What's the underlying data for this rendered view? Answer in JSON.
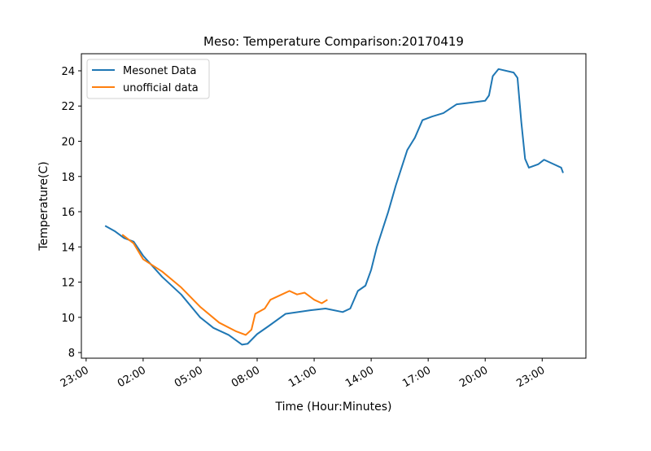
{
  "chart_data": {
    "type": "line",
    "title": "Meso: Temperature Comparison:20170419",
    "xlabel": "Time (Hour:Minutes)",
    "ylabel": "Temperature(C)",
    "xlim": [
      -1.25,
      25.3
    ],
    "ylim": [
      7.68,
      24.97
    ],
    "xticks": [
      {
        "value": -1,
        "label": "23:00"
      },
      {
        "value": 2,
        "label": "02:00"
      },
      {
        "value": 5,
        "label": "05:00"
      },
      {
        "value": 8,
        "label": "08:00"
      },
      {
        "value": 11,
        "label": "11:00"
      },
      {
        "value": 14,
        "label": "14:00"
      },
      {
        "value": 17,
        "label": "17:00"
      },
      {
        "value": 20,
        "label": "20:00"
      },
      {
        "value": 23,
        "label": "23:00"
      }
    ],
    "yticks": [
      8,
      10,
      12,
      14,
      16,
      18,
      20,
      22,
      24
    ],
    "legend": "upper left",
    "series": [
      {
        "name": "Mesonet Data",
        "color": "#1f77b4",
        "x": [
          0.0,
          0.5,
          1.0,
          1.5,
          2.0,
          3.0,
          4.0,
          5.0,
          5.7,
          6.5,
          7.2,
          7.5,
          8.0,
          8.6,
          9.5,
          10.8,
          11.6,
          12.5,
          12.9,
          13.3,
          13.7,
          14.0,
          14.3,
          14.6,
          14.9,
          15.3,
          15.6,
          15.9,
          16.3,
          16.7,
          17.2,
          17.8,
          18.5,
          19.3,
          20.0,
          20.2,
          20.4,
          20.7,
          21.5,
          21.7,
          21.9,
          22.1,
          22.3,
          22.8,
          23.1,
          23.6,
          24.0,
          24.1
        ],
        "values": [
          15.2,
          14.9,
          14.5,
          14.3,
          13.5,
          12.3,
          11.3,
          10.0,
          9.4,
          9.0,
          8.45,
          8.5,
          9.05,
          9.5,
          10.2,
          10.4,
          10.5,
          10.3,
          10.5,
          11.5,
          11.8,
          12.7,
          14.0,
          15.0,
          16.0,
          17.5,
          18.5,
          19.5,
          20.2,
          21.2,
          21.4,
          21.6,
          22.1,
          22.2,
          22.3,
          22.6,
          23.7,
          24.1,
          23.9,
          23.6,
          21.1,
          19.0,
          18.5,
          18.7,
          18.95,
          18.7,
          18.5,
          18.2
        ]
      },
      {
        "name": "unofficial data",
        "color": "#ff7f0e",
        "x": [
          0.9,
          1.5,
          2.0,
          3.0,
          4.0,
          5.0,
          6.0,
          6.9,
          7.4,
          7.7,
          7.9,
          8.4,
          8.7,
          9.3,
          9.7,
          10.1,
          10.5,
          11.0,
          11.4,
          11.7
        ],
        "values": [
          14.7,
          14.2,
          13.3,
          12.6,
          11.7,
          10.6,
          9.7,
          9.2,
          9.0,
          9.3,
          10.2,
          10.5,
          11.0,
          11.3,
          11.5,
          11.3,
          11.4,
          11.0,
          10.8,
          11.0
        ]
      }
    ]
  }
}
